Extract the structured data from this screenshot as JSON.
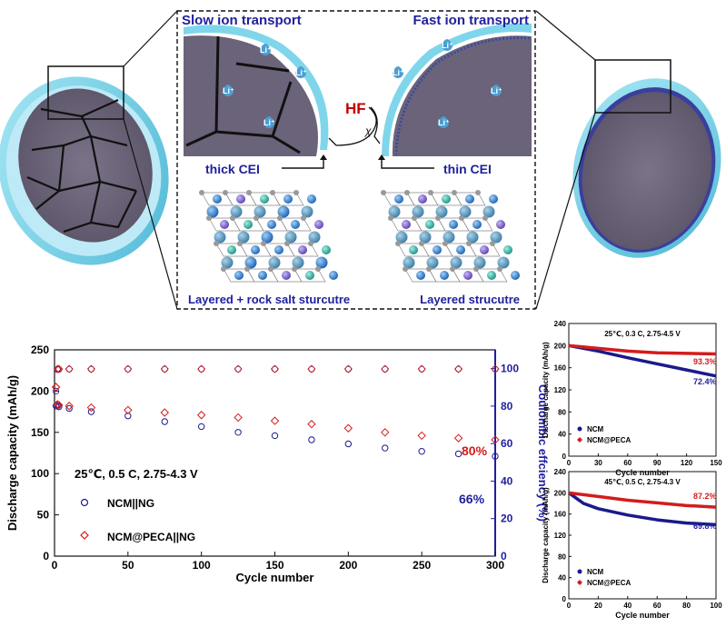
{
  "schematic": {
    "slow_title": "Slow ion transport",
    "fast_title": "Fast ion transport",
    "hf": "HF",
    "x_mark": "χ",
    "thick_cei": "thick CEI",
    "thin_cei": "thin CEI",
    "layered_rock": "Layered + rock salt sturcutre",
    "layered": "Layered strucutre",
    "li_label": "Li⁺"
  },
  "colors": {
    "blue": "#1f1f9e",
    "red": "#d41c1c",
    "navy_series": "#1a1a8c",
    "cei": "#7fd6ea",
    "particle": "#6b6379"
  },
  "chart_data": [
    {
      "type": "scatter",
      "title": "",
      "xlabel": "Cycle number",
      "ylabel": "Discharge capacity (mAh/g)",
      "y2label": "Coulombic effciency (%)",
      "xlim": [
        0,
        300
      ],
      "ylim": [
        0,
        250
      ],
      "y2lim": [
        0,
        110
      ],
      "xticks": [
        0,
        50,
        100,
        150,
        200,
        250,
        300
      ],
      "yticks": [
        0,
        50,
        100,
        150,
        200,
        250
      ],
      "y2ticks": [
        0,
        20,
        40,
        60,
        80,
        100
      ],
      "condition": "25℃,  0.5 C, 2.75-4.3 V",
      "legend": [
        "NCM||NG",
        "NCM@PECA||NG"
      ],
      "annotations": [
        "80%",
        "66%"
      ],
      "series": [
        {
          "name": "NCM||NG",
          "color": "#1a1a8c",
          "marker": "circle",
          "x": [
            1,
            2,
            3,
            10,
            25,
            50,
            75,
            100,
            125,
            150,
            175,
            200,
            225,
            250,
            275,
            300
          ],
          "capacity": [
            182,
            183,
            181,
            179,
            175,
            170,
            163,
            157,
            150,
            146,
            141,
            136,
            131,
            127,
            124,
            121
          ],
          "efficiency": [
            88,
            99.5,
            99.6,
            99.7,
            99.7,
            99.7,
            99.7,
            99.7,
            99.7,
            99.7,
            99.7,
            99.7,
            99.7,
            99.7,
            99.7,
            99.7
          ]
        },
        {
          "name": "NCM@PECA||NG",
          "color": "#d41c1c",
          "marker": "diamond",
          "x": [
            1,
            2,
            3,
            10,
            25,
            50,
            75,
            100,
            125,
            150,
            175,
            200,
            225,
            250,
            275,
            300
          ],
          "capacity": [
            205,
            184,
            183,
            182,
            180,
            177,
            174,
            171,
            168,
            164,
            160,
            155,
            150,
            146,
            143,
            141
          ],
          "efficiency": [
            90,
            99.8,
            99.8,
            99.8,
            99.8,
            99.8,
            99.8,
            99.8,
            99.8,
            99.8,
            99.8,
            99.8,
            99.8,
            99.8,
            99.8,
            99.8
          ]
        }
      ]
    },
    {
      "type": "line",
      "condition": "25℃, 0.3 C, 2.75-4.5 V",
      "xlabel": "Cycle number",
      "ylabel": "Discharge capacity (mAh/g)",
      "xlim": [
        0,
        150
      ],
      "ylim": [
        0,
        240
      ],
      "xticks": [
        0,
        30,
        60,
        90,
        120,
        150
      ],
      "yticks": [
        0,
        40,
        80,
        120,
        160,
        200,
        240
      ],
      "legend": [
        "NCM",
        "NCM@PECA"
      ],
      "annotations": [
        "93.3%",
        "72.4%"
      ],
      "series": [
        {
          "name": "NCM",
          "color": "#1a1a8c",
          "x": [
            0,
            30,
            60,
            90,
            120,
            150
          ],
          "values": [
            200,
            190,
            178,
            167,
            156,
            145
          ]
        },
        {
          "name": "NCM@PECA",
          "color": "#d41c1c",
          "x": [
            0,
            30,
            60,
            90,
            120,
            150
          ],
          "values": [
            200,
            195,
            190,
            187,
            186,
            185
          ]
        }
      ]
    },
    {
      "type": "line",
      "condition": "45℃, 0.5 C, 2.75-4.3 V",
      "xlabel": "Cycle number",
      "ylabel": "Discharge capacity (mAh/g)",
      "xlim": [
        0,
        100
      ],
      "ylim": [
        0,
        240
      ],
      "xticks": [
        0,
        20,
        40,
        60,
        80,
        100
      ],
      "yticks": [
        0,
        40,
        80,
        120,
        160,
        200,
        240
      ],
      "legend": [
        "NCM",
        "NCM@PECA"
      ],
      "annotations": [
        "87.2%",
        "69.8%"
      ],
      "series": [
        {
          "name": "NCM",
          "color": "#1a1a8c",
          "x": [
            0,
            10,
            20,
            40,
            60,
            80,
            100
          ],
          "values": [
            200,
            180,
            170,
            158,
            149,
            143,
            140
          ]
        },
        {
          "name": "NCM@PECA",
          "color": "#d41c1c",
          "x": [
            0,
            20,
            40,
            60,
            80,
            100
          ],
          "values": [
            200,
            193,
            186,
            181,
            176,
            173
          ]
        }
      ]
    }
  ]
}
